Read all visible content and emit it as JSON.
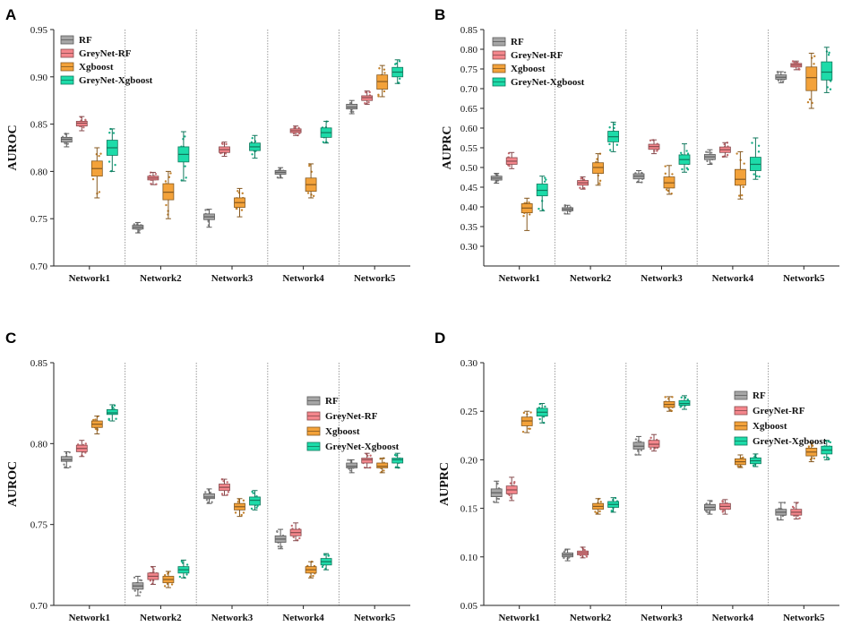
{
  "colors": {
    "RF": "#a6a6a6",
    "GreyNet-RF": "#f4868c",
    "Xgboost": "#f3a23a",
    "GreyNet-Xgboost": "#1ddba9"
  },
  "chart_data": [
    {
      "panel": "A",
      "type": "box",
      "ylabel": "AUROC",
      "ylim": [
        0.7,
        0.95
      ],
      "yticks": [
        "0.70",
        "0.75",
        "0.80",
        "0.85",
        "0.90",
        "0.95"
      ],
      "legend_position": "top-left",
      "categories": [
        "Network1",
        "Network2",
        "Network3",
        "Network4",
        "Network5"
      ],
      "series": [
        {
          "name": "RF",
          "boxes": [
            {
              "min": 0.826,
              "q1": 0.831,
              "median": 0.834,
              "q3": 0.836,
              "max": 0.84
            },
            {
              "min": 0.735,
              "q1": 0.739,
              "median": 0.741,
              "q3": 0.743,
              "max": 0.746
            },
            {
              "min": 0.741,
              "q1": 0.749,
              "median": 0.752,
              "q3": 0.755,
              "max": 0.76
            },
            {
              "min": 0.793,
              "q1": 0.797,
              "median": 0.799,
              "q3": 0.801,
              "max": 0.804
            },
            {
              "min": 0.861,
              "q1": 0.866,
              "median": 0.868,
              "q3": 0.871,
              "max": 0.875
            }
          ]
        },
        {
          "name": "GreyNet-RF",
          "boxes": [
            {
              "min": 0.843,
              "q1": 0.848,
              "median": 0.851,
              "q3": 0.853,
              "max": 0.858
            },
            {
              "min": 0.786,
              "q1": 0.791,
              "median": 0.793,
              "q3": 0.795,
              "max": 0.799
            },
            {
              "min": 0.816,
              "q1": 0.82,
              "median": 0.823,
              "q3": 0.826,
              "max": 0.831
            },
            {
              "min": 0.838,
              "q1": 0.841,
              "median": 0.843,
              "q3": 0.845,
              "max": 0.848
            },
            {
              "min": 0.871,
              "q1": 0.875,
              "median": 0.878,
              "q3": 0.88,
              "max": 0.885
            }
          ]
        },
        {
          "name": "Xgboost",
          "boxes": [
            {
              "min": 0.772,
              "q1": 0.795,
              "median": 0.803,
              "q3": 0.811,
              "max": 0.825
            },
            {
              "min": 0.75,
              "q1": 0.77,
              "median": 0.778,
              "q3": 0.787,
              "max": 0.8
            },
            {
              "min": 0.752,
              "q1": 0.762,
              "median": 0.767,
              "q3": 0.772,
              "max": 0.782
            },
            {
              "min": 0.772,
              "q1": 0.779,
              "median": 0.786,
              "q3": 0.793,
              "max": 0.808
            },
            {
              "min": 0.879,
              "q1": 0.887,
              "median": 0.895,
              "q3": 0.902,
              "max": 0.912
            }
          ]
        },
        {
          "name": "GreyNet-Xgboost",
          "boxes": [
            {
              "min": 0.8,
              "q1": 0.817,
              "median": 0.825,
              "q3": 0.833,
              "max": 0.845
            },
            {
              "min": 0.79,
              "q1": 0.81,
              "median": 0.818,
              "q3": 0.826,
              "max": 0.842
            },
            {
              "min": 0.814,
              "q1": 0.822,
              "median": 0.826,
              "q3": 0.83,
              "max": 0.838
            },
            {
              "min": 0.83,
              "q1": 0.836,
              "median": 0.841,
              "q3": 0.846,
              "max": 0.853
            },
            {
              "min": 0.893,
              "q1": 0.9,
              "median": 0.905,
              "q3": 0.91,
              "max": 0.918
            }
          ]
        }
      ]
    },
    {
      "panel": "B",
      "type": "box",
      "ylabel": "AUPRC",
      "ylim": [
        0.25,
        0.85
      ],
      "yticks": [
        "0.30",
        "0.35",
        "0.40",
        "0.45",
        "0.50",
        "0.55",
        "0.60",
        "0.65",
        "0.70",
        "0.75",
        "0.80",
        "0.85"
      ],
      "legend_position": "top-left",
      "categories": [
        "Network1",
        "Network2",
        "Network3",
        "Network4",
        "Network5"
      ],
      "series": [
        {
          "name": "RF",
          "boxes": [
            {
              "min": 0.46,
              "q1": 0.468,
              "median": 0.473,
              "q3": 0.478,
              "max": 0.485
            },
            {
              "min": 0.382,
              "q1": 0.39,
              "median": 0.394,
              "q3": 0.398,
              "max": 0.404
            },
            {
              "min": 0.462,
              "q1": 0.471,
              "median": 0.478,
              "q3": 0.484,
              "max": 0.492
            },
            {
              "min": 0.508,
              "q1": 0.52,
              "median": 0.527,
              "q3": 0.533,
              "max": 0.545
            },
            {
              "min": 0.715,
              "q1": 0.724,
              "median": 0.729,
              "q3": 0.735,
              "max": 0.743
            }
          ]
        },
        {
          "name": "GreyNet-RF",
          "boxes": [
            {
              "min": 0.497,
              "q1": 0.508,
              "median": 0.516,
              "q3": 0.525,
              "max": 0.538
            },
            {
              "min": 0.445,
              "q1": 0.455,
              "median": 0.461,
              "q3": 0.467,
              "max": 0.476
            },
            {
              "min": 0.535,
              "q1": 0.546,
              "median": 0.553,
              "q3": 0.559,
              "max": 0.57
            },
            {
              "min": 0.527,
              "q1": 0.538,
              "median": 0.545,
              "q3": 0.552,
              "max": 0.563
            },
            {
              "min": 0.748,
              "q1": 0.755,
              "median": 0.76,
              "q3": 0.764,
              "max": 0.77
            }
          ]
        },
        {
          "name": "Xgboost",
          "boxes": [
            {
              "min": 0.34,
              "q1": 0.385,
              "median": 0.397,
              "q3": 0.408,
              "max": 0.422
            },
            {
              "min": 0.455,
              "q1": 0.485,
              "median": 0.5,
              "q3": 0.512,
              "max": 0.535
            },
            {
              "min": 0.432,
              "q1": 0.448,
              "median": 0.461,
              "q3": 0.476,
              "max": 0.505
            },
            {
              "min": 0.42,
              "q1": 0.455,
              "median": 0.47,
              "q3": 0.495,
              "max": 0.54
            },
            {
              "min": 0.65,
              "q1": 0.695,
              "median": 0.728,
              "q3": 0.755,
              "max": 0.79
            }
          ]
        },
        {
          "name": "GreyNet-Xgboost",
          "boxes": [
            {
              "min": 0.39,
              "q1": 0.428,
              "median": 0.442,
              "q3": 0.458,
              "max": 0.478
            },
            {
              "min": 0.54,
              "q1": 0.565,
              "median": 0.578,
              "q3": 0.592,
              "max": 0.615
            },
            {
              "min": 0.488,
              "q1": 0.508,
              "median": 0.52,
              "q3": 0.532,
              "max": 0.56
            },
            {
              "min": 0.47,
              "q1": 0.492,
              "median": 0.508,
              "q3": 0.526,
              "max": 0.575
            },
            {
              "min": 0.69,
              "q1": 0.722,
              "median": 0.742,
              "q3": 0.768,
              "max": 0.805
            }
          ]
        }
      ]
    },
    {
      "panel": "C",
      "type": "box",
      "ylabel": "AUROC",
      "ylim": [
        0.7,
        0.85
      ],
      "yticks": [
        "0.70",
        "0.75",
        "0.80",
        "0.85"
      ],
      "legend_position": "top-right",
      "categories": [
        "Network1",
        "Network2",
        "Network3",
        "Network4",
        "Network5"
      ],
      "series": [
        {
          "name": "RF",
          "boxes": [
            {
              "min": 0.785,
              "q1": 0.789,
              "median": 0.79,
              "q3": 0.792,
              "max": 0.795
            },
            {
              "min": 0.706,
              "q1": 0.71,
              "median": 0.712,
              "q3": 0.714,
              "max": 0.718
            },
            {
              "min": 0.763,
              "q1": 0.766,
              "median": 0.767,
              "q3": 0.769,
              "max": 0.772
            },
            {
              "min": 0.735,
              "q1": 0.739,
              "median": 0.741,
              "q3": 0.743,
              "max": 0.747
            },
            {
              "min": 0.782,
              "q1": 0.785,
              "median": 0.786,
              "q3": 0.788,
              "max": 0.79
            }
          ]
        },
        {
          "name": "GreyNet-RF",
          "boxes": [
            {
              "min": 0.792,
              "q1": 0.795,
              "median": 0.797,
              "q3": 0.799,
              "max": 0.802
            },
            {
              "min": 0.713,
              "q1": 0.716,
              "median": 0.718,
              "q3": 0.72,
              "max": 0.724
            },
            {
              "min": 0.768,
              "q1": 0.771,
              "median": 0.773,
              "q3": 0.775,
              "max": 0.778
            },
            {
              "min": 0.74,
              "q1": 0.743,
              "median": 0.745,
              "q3": 0.747,
              "max": 0.751
            },
            {
              "min": 0.785,
              "q1": 0.788,
              "median": 0.79,
              "q3": 0.791,
              "max": 0.794
            }
          ]
        },
        {
          "name": "Xgboost",
          "boxes": [
            {
              "min": 0.806,
              "q1": 0.81,
              "median": 0.812,
              "q3": 0.814,
              "max": 0.817
            },
            {
              "min": 0.711,
              "q1": 0.714,
              "median": 0.716,
              "q3": 0.718,
              "max": 0.721
            },
            {
              "min": 0.755,
              "q1": 0.759,
              "median": 0.761,
              "q3": 0.763,
              "max": 0.766
            },
            {
              "min": 0.717,
              "q1": 0.72,
              "median": 0.722,
              "q3": 0.724,
              "max": 0.727
            },
            {
              "min": 0.782,
              "q1": 0.785,
              "median": 0.786,
              "q3": 0.788,
              "max": 0.791
            }
          ]
        },
        {
          "name": "GreyNet-Xgboost",
          "boxes": [
            {
              "min": 0.814,
              "q1": 0.818,
              "median": 0.819,
              "q3": 0.821,
              "max": 0.824
            },
            {
              "min": 0.717,
              "q1": 0.72,
              "median": 0.722,
              "q3": 0.724,
              "max": 0.728
            },
            {
              "min": 0.759,
              "q1": 0.762,
              "median": 0.765,
              "q3": 0.767,
              "max": 0.771
            },
            {
              "min": 0.722,
              "q1": 0.725,
              "median": 0.727,
              "q3": 0.729,
              "max": 0.732
            },
            {
              "min": 0.785,
              "q1": 0.788,
              "median": 0.79,
              "q3": 0.791,
              "max": 0.794
            }
          ]
        }
      ]
    },
    {
      "panel": "D",
      "type": "box",
      "ylabel": "AUPRC",
      "ylim": [
        0.05,
        0.3
      ],
      "yticks": [
        "0.05",
        "0.10",
        "0.15",
        "0.20",
        "0.25",
        "0.30"
      ],
      "legend_position": "top-right",
      "categories": [
        "Network1",
        "Network2",
        "Network3",
        "Network4",
        "Network5"
      ],
      "series": [
        {
          "name": "RF",
          "boxes": [
            {
              "min": 0.156,
              "q1": 0.162,
              "median": 0.166,
              "q3": 0.17,
              "max": 0.178
            },
            {
              "min": 0.096,
              "q1": 0.1,
              "median": 0.102,
              "q3": 0.104,
              "max": 0.108
            },
            {
              "min": 0.205,
              "q1": 0.211,
              "median": 0.214,
              "q3": 0.218,
              "max": 0.224
            },
            {
              "min": 0.144,
              "q1": 0.148,
              "median": 0.151,
              "q3": 0.154,
              "max": 0.158
            },
            {
              "min": 0.138,
              "q1": 0.143,
              "median": 0.146,
              "q3": 0.149,
              "max": 0.156
            }
          ]
        },
        {
          "name": "GreyNet-RF",
          "boxes": [
            {
              "min": 0.158,
              "q1": 0.165,
              "median": 0.169,
              "q3": 0.173,
              "max": 0.182
            },
            {
              "min": 0.099,
              "q1": 0.102,
              "median": 0.104,
              "q3": 0.106,
              "max": 0.11
            },
            {
              "min": 0.209,
              "q1": 0.213,
              "median": 0.216,
              "q3": 0.22,
              "max": 0.226
            },
            {
              "min": 0.144,
              "q1": 0.149,
              "median": 0.152,
              "q3": 0.155,
              "max": 0.159
            },
            {
              "min": 0.139,
              "q1": 0.143,
              "median": 0.146,
              "q3": 0.149,
              "max": 0.156
            }
          ]
        },
        {
          "name": "Xgboost",
          "boxes": [
            {
              "min": 0.228,
              "q1": 0.235,
              "median": 0.24,
              "q3": 0.244,
              "max": 0.25
            },
            {
              "min": 0.144,
              "q1": 0.149,
              "median": 0.152,
              "q3": 0.155,
              "max": 0.16
            },
            {
              "min": 0.25,
              "q1": 0.254,
              "median": 0.257,
              "q3": 0.26,
              "max": 0.265
            },
            {
              "min": 0.192,
              "q1": 0.195,
              "median": 0.198,
              "q3": 0.201,
              "max": 0.205
            },
            {
              "min": 0.198,
              "q1": 0.204,
              "median": 0.208,
              "q3": 0.212,
              "max": 0.218
            }
          ]
        },
        {
          "name": "GreyNet-Xgboost",
          "boxes": [
            {
              "min": 0.238,
              "q1": 0.245,
              "median": 0.249,
              "q3": 0.253,
              "max": 0.258
            },
            {
              "min": 0.146,
              "q1": 0.151,
              "median": 0.154,
              "q3": 0.157,
              "max": 0.161
            },
            {
              "min": 0.252,
              "q1": 0.256,
              "median": 0.258,
              "q3": 0.261,
              "max": 0.266
            },
            {
              "min": 0.193,
              "q1": 0.196,
              "median": 0.199,
              "q3": 0.202,
              "max": 0.206
            },
            {
              "min": 0.2,
              "q1": 0.206,
              "median": 0.21,
              "q3": 0.214,
              "max": 0.22
            }
          ]
        }
      ]
    }
  ]
}
